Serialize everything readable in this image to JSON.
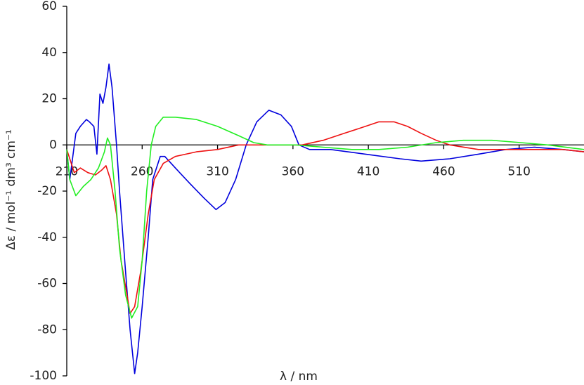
{
  "chart_data": {
    "type": "line",
    "x_label": "λ / nm",
    "y_label": "Δε / mol⁻¹ dm³ cm⁻¹",
    "xlim": [
      210,
      553
    ],
    "ylim": [
      -100,
      60
    ],
    "xticks": [
      210,
      260,
      310,
      360,
      410,
      460,
      510
    ],
    "yticks": [
      60,
      40,
      20,
      0,
      -20,
      -40,
      -60,
      -80,
      -100
    ],
    "series": [
      {
        "color": "#0000dd",
        "x": [
          210,
          212,
          216,
          219,
          223,
          225,
          228,
          230,
          232,
          234,
          236,
          238,
          240,
          243,
          245,
          249,
          252,
          255,
          257,
          260,
          264,
          267,
          272,
          275,
          282,
          292,
          301,
          309,
          315,
          322,
          329,
          336,
          344,
          352,
          359,
          364,
          371,
          385,
          408,
          431,
          445,
          464,
          483,
          501,
          520,
          539,
          553
        ],
        "values": [
          -2,
          -15,
          5,
          8,
          11,
          10,
          8,
          -4,
          22,
          18,
          25,
          35,
          25,
          0,
          -20,
          -55,
          -80,
          -99,
          -90,
          -70,
          -40,
          -15,
          -5,
          -5,
          -10,
          -17,
          -23,
          -28,
          -25,
          -15,
          0,
          10,
          15,
          13,
          8,
          0,
          -2,
          -2,
          -4,
          -6,
          -7,
          -6,
          -4,
          -2,
          -1,
          -2,
          -3
        ]
      },
      {
        "color": "#ee1111",
        "x": [
          210,
          215,
          219,
          224,
          229,
          233,
          236,
          239,
          243,
          246,
          250,
          252,
          255,
          259,
          264,
          268,
          274,
          282,
          296,
          310,
          324,
          338,
          352,
          366,
          380,
          394,
          408,
          417,
          427,
          436,
          445,
          455,
          464,
          483,
          501,
          520,
          539,
          553
        ],
        "values": [
          -2,
          -12,
          -10,
          -12,
          -13,
          -11,
          -9,
          -15,
          -30,
          -50,
          -65,
          -73,
          -70,
          -55,
          -30,
          -15,
          -8,
          -5,
          -3,
          -2,
          0,
          0,
          0,
          0,
          2,
          5,
          8,
          10,
          10,
          8,
          5,
          2,
          0,
          -2,
          -2,
          -2,
          -2,
          -3
        ]
      },
      {
        "color": "#22ee22",
        "x": [
          210,
          212,
          216,
          221,
          226,
          231,
          235,
          237,
          239,
          242,
          245,
          249,
          253,
          257,
          260,
          263,
          266,
          269,
          274,
          282,
          296,
          310,
          324,
          334,
          343,
          362,
          380,
          399,
          417,
          436,
          455,
          473,
          492,
          511,
          529,
          553
        ],
        "values": [
          -2,
          -15,
          -22,
          -18,
          -15,
          -10,
          -3,
          3,
          0,
          -20,
          -45,
          -65,
          -75,
          -70,
          -50,
          -20,
          0,
          8,
          12,
          12,
          11,
          8,
          4,
          1,
          0,
          0,
          -1,
          -2,
          -2,
          -1,
          1,
          2,
          2,
          1,
          0,
          -2
        ]
      }
    ]
  }
}
